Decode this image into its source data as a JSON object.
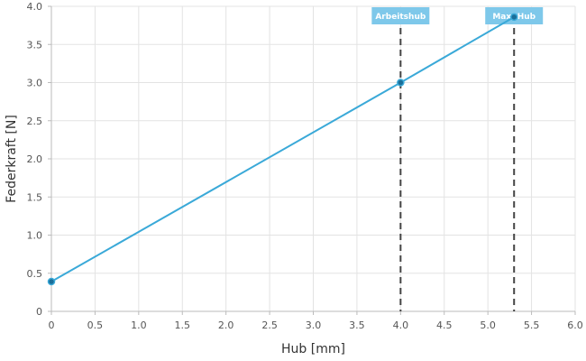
{
  "chart_data": {
    "type": "line",
    "title": "",
    "xlabel": "Hub [mm]",
    "ylabel": "Federkraft [N]",
    "xlim": [
      0,
      6.0
    ],
    "ylim": [
      0,
      4.0
    ],
    "x_ticks": [
      "0",
      "0.5",
      "1.0",
      "1.5",
      "2.0",
      "2.5",
      "3.0",
      "3.5",
      "4.0",
      "4.5",
      "5.0",
      "5.5",
      "6.0"
    ],
    "y_ticks": [
      "0",
      "0.5",
      "1.0",
      "1.5",
      "2.0",
      "2.5",
      "3.0",
      "3.5",
      "4.0"
    ],
    "grid": true,
    "series": [
      {
        "x": [
          0,
          4.0,
          5.3
        ],
        "y": [
          0.39,
          3.0,
          3.86
        ]
      }
    ],
    "markers": [
      {
        "label": "Arbeitshub",
        "x": 4.0
      },
      {
        "label": "Max. Hub",
        "x": 5.3
      }
    ],
    "colors": {
      "line": "#3aa9d8",
      "point_fill": "#1a6e99",
      "marker_line": "#444444",
      "marker_label_bg": "#7ec8ea"
    }
  }
}
